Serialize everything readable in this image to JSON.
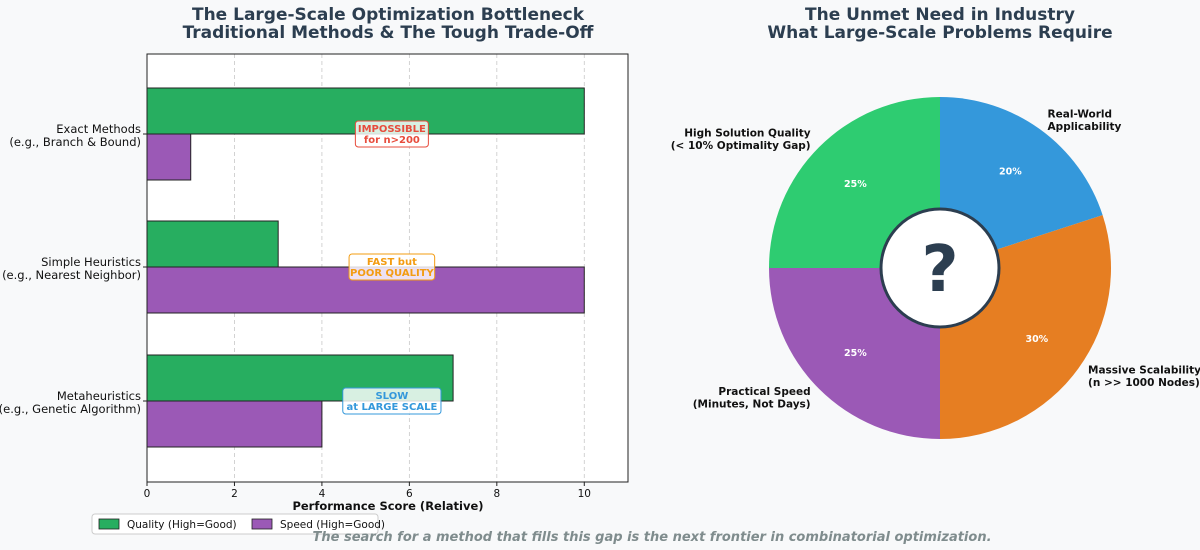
{
  "chart_data": [
    {
      "type": "bar",
      "orientation": "horizontal",
      "title_lines": [
        "The Large-Scale Optimization Bottleneck",
        "Traditional Methods & The Tough Trade-Off"
      ],
      "categories": [
        {
          "name": "Exact Methods",
          "sub": "(e.g., Branch & Bound)"
        },
        {
          "name": "Simple Heuristics",
          "sub": "(e.g., Nearest Neighbor)"
        },
        {
          "name": "Metaheuristics",
          "sub": "(e.g., Genetic Algorithm)"
        }
      ],
      "series": [
        {
          "name": "Quality (High=Good)",
          "color": "#27ae60",
          "values": [
            10,
            3,
            7
          ]
        },
        {
          "name": "Speed (High=Good)",
          "color": "#9b59b6",
          "values": [
            1,
            10,
            4
          ]
        }
      ],
      "xlabel": "Performance Score (Relative)",
      "xlim": [
        0,
        11
      ],
      "xticks": [
        0,
        2,
        4,
        6,
        8,
        10
      ],
      "grid": "x-dashed",
      "legend_position": "bottom-left",
      "annotations": [
        {
          "category_index": 0,
          "x": 5.6,
          "lines": [
            "IMPOSSIBLE",
            "for n>200"
          ],
          "color": "#e74c3c"
        },
        {
          "category_index": 1,
          "x": 5.6,
          "lines": [
            "FAST but",
            "POOR QUALITY"
          ],
          "color": "#f39c12"
        },
        {
          "category_index": 2,
          "x": 5.6,
          "lines": [
            "SLOW",
            "at LARGE SCALE"
          ],
          "color": "#3498db"
        }
      ]
    },
    {
      "type": "pie",
      "style": "donut-with-center-question",
      "title_lines": [
        "The Unmet Need in Industry",
        "What Large-Scale Problems Require"
      ],
      "center_text": "?",
      "slices": [
        {
          "label_lines": [
            "Real-World",
            "Applicability"
          ],
          "value": 20,
          "pct_label": "20%",
          "color": "#3498db"
        },
        {
          "label_lines": [
            "Massive Scalability",
            "(n >> 1000 Nodes)"
          ],
          "value": 30,
          "pct_label": "30%",
          "color": "#e67e22"
        },
        {
          "label_lines": [
            "Practical Speed",
            "(Minutes, Not Days)"
          ],
          "value": 25,
          "pct_label": "25%",
          "color": "#9b59b6"
        },
        {
          "label_lines": [
            "High Solution Quality",
            "(< 10% Optimality Gap)"
          ],
          "value": 25,
          "pct_label": "25%",
          "color": "#2ecc71"
        }
      ]
    }
  ],
  "footer": "The search for a method that fills this gap is the next frontier in combinatorial optimization."
}
